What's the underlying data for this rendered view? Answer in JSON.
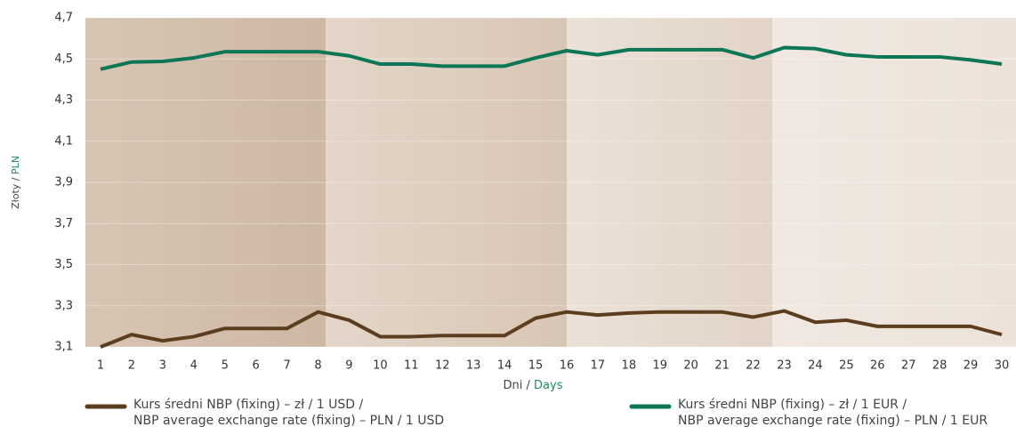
{
  "chart_data": {
    "type": "line",
    "y_label": [
      "Złoty /",
      "PLN"
    ],
    "x_label": [
      "Dni /",
      "Days"
    ],
    "categories": [
      "1",
      "2",
      "3",
      "4",
      "5",
      "6",
      "7",
      "8",
      "9",
      "10",
      "11",
      "12",
      "13",
      "14",
      "15",
      "16",
      "17",
      "18",
      "19",
      "20",
      "21",
      "22",
      "23",
      "24",
      "25",
      "26",
      "27",
      "28",
      "29",
      "30"
    ],
    "series": [
      {
        "name": "Kurs średni NBP (fixing) – zł / 1 USD /",
        "name_en": "NBP average exchange rate (fixing) – PLN / 1 USD",
        "color": "#5c3d1e",
        "values": [
          3.1,
          3.16,
          3.13,
          3.15,
          3.19,
          3.19,
          3.19,
          3.27,
          3.23,
          3.15,
          3.15,
          3.155,
          3.155,
          3.155,
          3.24,
          3.27,
          3.255,
          3.265,
          3.27,
          3.27,
          3.27,
          3.245,
          3.275,
          3.22,
          3.23,
          3.2,
          3.2,
          3.2,
          3.2,
          3.16
        ]
      },
      {
        "name": "Kurs średni NBP (fixing) – zł / 1 EUR /",
        "name_en": "NBP average exchange rate (fixing) – PLN / 1 EUR",
        "color": "#0c7656",
        "values": [
          4.45,
          4.485,
          4.488,
          4.505,
          4.535,
          4.535,
          4.535,
          4.535,
          4.515,
          4.475,
          4.475,
          4.465,
          4.465,
          4.465,
          4.505,
          4.54,
          4.52,
          4.545,
          4.545,
          4.545,
          4.545,
          4.505,
          4.555,
          4.55,
          4.52,
          4.51,
          4.51,
          4.51,
          4.495,
          4.475
        ]
      }
    ],
    "ylim": [
      3.1,
      4.7
    ],
    "yticks": [
      {
        "value": 3.1,
        "label": "3,1"
      },
      {
        "value": 3.3,
        "label": "3,3"
      },
      {
        "value": 3.5,
        "label": "3,5"
      },
      {
        "value": 3.7,
        "label": "3,7"
      },
      {
        "value": 3.9,
        "label": "3,9"
      },
      {
        "value": 4.1,
        "label": "4,1"
      },
      {
        "value": 4.3,
        "label": "4,3"
      },
      {
        "value": 4.5,
        "label": "4,5"
      },
      {
        "value": 4.7,
        "label": "4,7"
      }
    ],
    "grid": true
  }
}
